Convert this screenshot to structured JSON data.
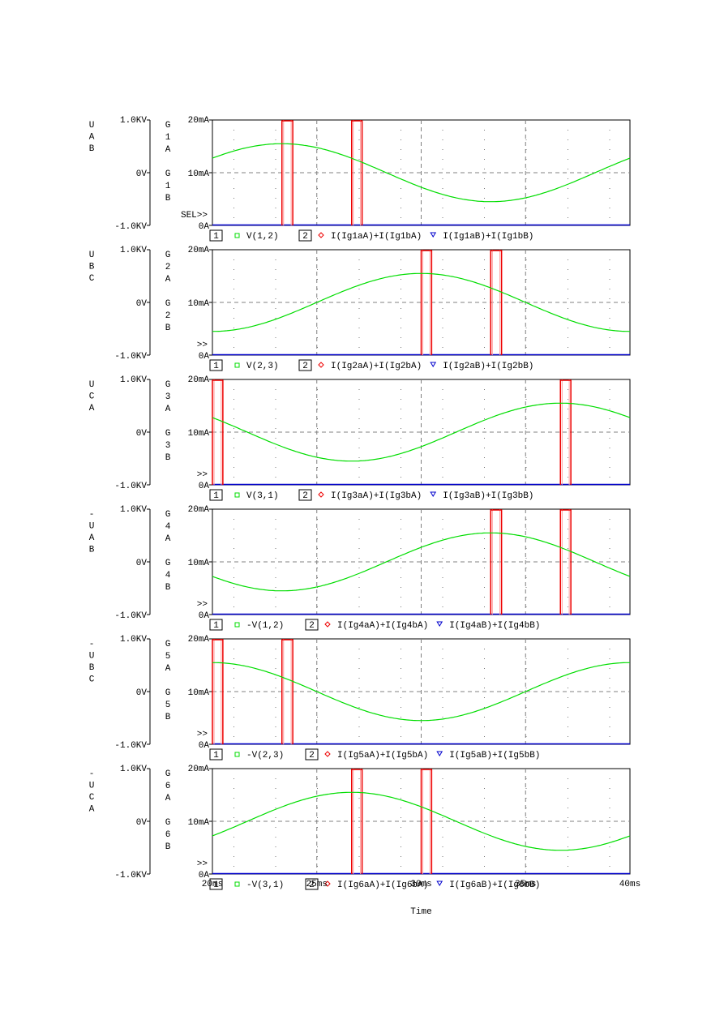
{
  "chart_data": {
    "type": "line",
    "title": "",
    "xlabel": "Time",
    "x_range_ms": [
      20,
      40
    ],
    "x_ticks": [
      "20ms",
      "25ms",
      "30ms",
      "35ms",
      "40ms"
    ],
    "grid": true,
    "left_axis": {
      "range_kv": [
        -1,
        1
      ],
      "ticks": [
        "1.0KV",
        "0V",
        "-1.0KV"
      ]
    },
    "right_axis": {
      "range_ma": [
        0,
        20
      ],
      "ticks": [
        "20mA",
        "10mA",
        "0A"
      ]
    },
    "colors": {
      "voltage": "#00dd00",
      "pulse": "#ee0000",
      "pulse_light": "#ff9999",
      "baseline": "#0000cc",
      "grid": "#808080"
    },
    "panels": [
      {
        "left_label": [
          "U",
          "A",
          "B"
        ],
        "right_label": [
          "G",
          "1",
          "A",
          "",
          "G",
          "1",
          "B"
        ],
        "marker": "SEL>>",
        "voltage": {
          "name": "V(1,2)",
          "amplitude_v": 550,
          "peak_ms": 23.33
        },
        "pulses_ms": [
          [
            23.33,
            23.85
          ],
          [
            26.67,
            27.17
          ]
        ],
        "legend": [
          "1",
          "V(1,2)",
          "2",
          "I(Ig1aA)+I(Ig1bA)",
          "I(Ig1aB)+I(Ig1bB)"
        ]
      },
      {
        "left_label": [
          "U",
          "B",
          "C"
        ],
        "right_label": [
          "G",
          "2",
          "A",
          "",
          "G",
          "2",
          "B"
        ],
        "marker": ">>",
        "voltage": {
          "name": "V(2,3)",
          "amplitude_v": 550,
          "peak_ms": 30.0
        },
        "pulses_ms": [
          [
            30.0,
            30.5
          ],
          [
            33.33,
            33.85
          ]
        ],
        "legend": [
          "1",
          "V(2,3)",
          "2",
          "I(Ig2aA)+I(Ig2bA)",
          "I(Ig2aB)+I(Ig2bB)"
        ]
      },
      {
        "left_label": [
          "U",
          "C",
          "A"
        ],
        "right_label": [
          "G",
          "3",
          "A",
          "",
          "G",
          "3",
          "B"
        ],
        "marker": ">>",
        "voltage": {
          "name": "V(3,1)",
          "amplitude_v": 550,
          "peak_ms": 36.67
        },
        "pulses_ms": [
          [
            20.0,
            20.5
          ],
          [
            36.67,
            37.17
          ]
        ],
        "legend": [
          "1",
          "V(3,1)",
          "2",
          "I(Ig3aA)+I(Ig3bA)",
          "I(Ig3aB)+I(Ig3bB)"
        ]
      },
      {
        "left_label": [
          "-",
          "U",
          "A",
          "B"
        ],
        "right_label": [
          "G",
          "4",
          "A",
          "",
          "G",
          "4",
          "B"
        ],
        "marker": ">>",
        "voltage": {
          "name": "-V(1,2)",
          "amplitude_v": 550,
          "peak_ms": 33.33
        },
        "pulses_ms": [
          [
            33.33,
            33.85
          ],
          [
            36.67,
            37.17
          ]
        ],
        "legend": [
          "1",
          "-V(1,2)",
          "2",
          "I(Ig4aA)+I(Ig4bA)",
          "I(Ig4aB)+I(Ig4bB)"
        ]
      },
      {
        "left_label": [
          "-",
          "U",
          "B",
          "C"
        ],
        "right_label": [
          "G",
          "5",
          "A",
          "",
          "G",
          "5",
          "B"
        ],
        "marker": ">>",
        "voltage": {
          "name": "-V(2,3)",
          "amplitude_v": 550,
          "peak_ms": 20.0
        },
        "pulses_ms": [
          [
            20.0,
            20.5
          ],
          [
            23.33,
            23.85
          ]
        ],
        "legend": [
          "1",
          "-V(2,3)",
          "2",
          "I(Ig5aA)+I(Ig5bA)",
          "I(Ig5aB)+I(Ig5bB)"
        ]
      },
      {
        "left_label": [
          "-",
          "U",
          "C",
          "A"
        ],
        "right_label": [
          "G",
          "6",
          "A",
          "",
          "G",
          "6",
          "B"
        ],
        "marker": ">>",
        "voltage": {
          "name": "-V(3,1)",
          "amplitude_v": 550,
          "peak_ms": 26.67
        },
        "pulses_ms": [
          [
            26.67,
            27.17
          ],
          [
            30.0,
            30.5
          ]
        ],
        "legend": [
          "1",
          "-V(3,1)",
          "2",
          "I(Ig6aA)+I(Ig6bA)",
          "I(Ig6aB)+I(Ig6bB)"
        ]
      }
    ]
  }
}
